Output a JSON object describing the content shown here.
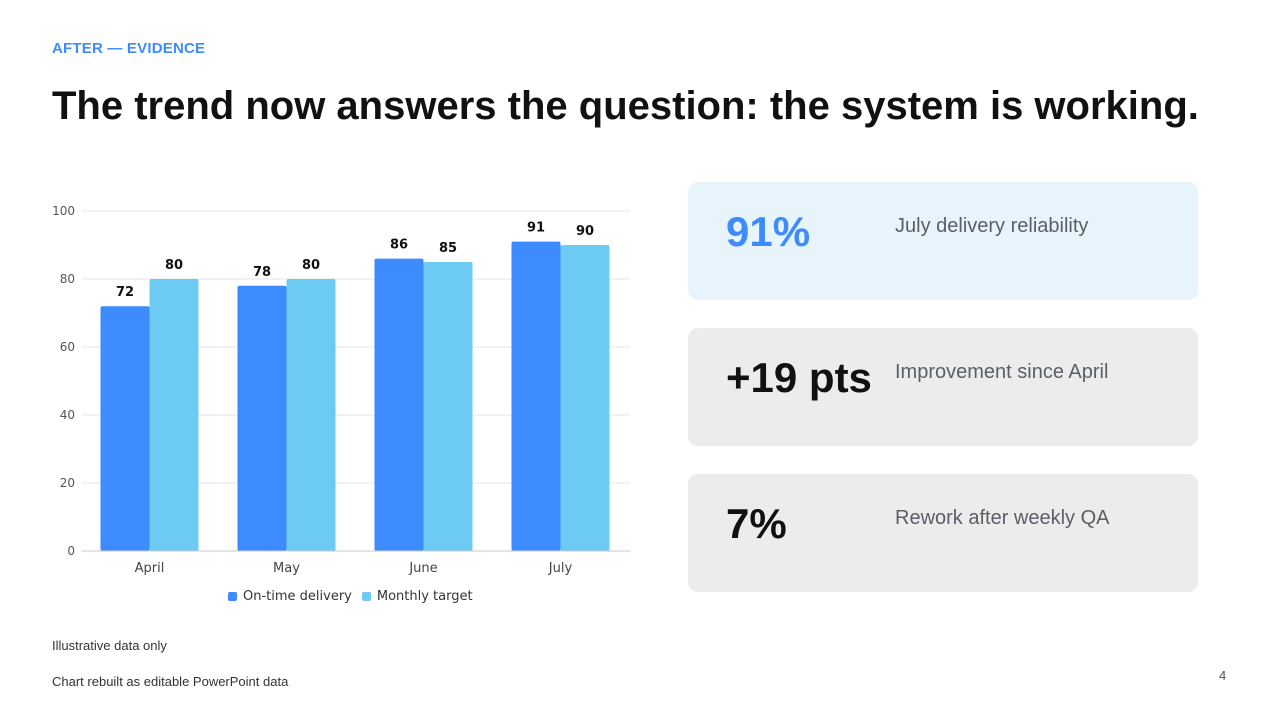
{
  "colors": {
    "accent": "#3d8bfd",
    "series_primary": "#3d8bfd",
    "series_secondary": "#6ccaf3",
    "highlight_card": "#e8f4fc",
    "neutral_card": "#ececec",
    "gridline": "#e6e6e6"
  },
  "slide": {
    "eyebrow": "AFTER — EVIDENCE",
    "title": "The trend now answers the question: the system is working.",
    "page_number": "4"
  },
  "chart_data": {
    "type": "bar",
    "categories": [
      "April",
      "May",
      "June",
      "July"
    ],
    "series": [
      {
        "name": "On-time delivery",
        "values": [
          72,
          78,
          86,
          91
        ]
      },
      {
        "name": "Monthly target",
        "values": [
          80,
          80,
          85,
          90
        ]
      }
    ],
    "ylim": [
      0,
      100
    ],
    "yticks": [
      0,
      20,
      40,
      60,
      80,
      100
    ],
    "data_labels": true,
    "grid": true,
    "legend": "bottom"
  },
  "kpis": [
    {
      "value": "91%",
      "label": "July delivery reliability",
      "highlight": true
    },
    {
      "value": "+19 pts",
      "label": "Improvement since April",
      "highlight": false
    },
    {
      "value": "7%",
      "label": "Rework after weekly QA",
      "highlight": false
    }
  ],
  "footnotes": {
    "data_note": "Illustrative data only",
    "source_note": "Chart rebuilt as editable PowerPoint data"
  }
}
